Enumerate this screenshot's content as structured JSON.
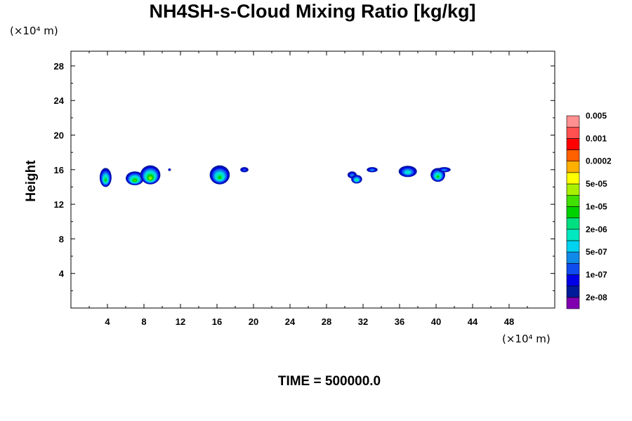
{
  "chart_data": {
    "type": "heatmap",
    "title": "NH4SH-s-Cloud Mixing Ratio [kg/kg]",
    "ylabel": "Height",
    "xlabel": "",
    "x_units": "(×10⁴ m)",
    "y_units": "(×10⁴ m)",
    "xlim": [
      0,
      53
    ],
    "ylim": [
      0,
      29.7
    ],
    "x_ticks": [
      4,
      8,
      12,
      16,
      20,
      24,
      28,
      32,
      36,
      40,
      44,
      48
    ],
    "y_ticks": [
      4,
      8,
      12,
      16,
      20,
      24,
      28
    ],
    "time_label": "TIME = 500000.0",
    "colorbar": {
      "colors": [
        "#8000b0",
        "#001a9a",
        "#0000e6",
        "#0f4cf0",
        "#0f8ae8",
        "#00d2f0",
        "#00e8c0",
        "#00e080",
        "#00d200",
        "#40e000",
        "#a8f000",
        "#ffff00",
        "#ffb000",
        "#ff6000",
        "#ff0000",
        "#ff5050",
        "#ff9090"
      ],
      "labels": [
        "2e-08",
        "1e-07",
        "5e-07",
        "2e-06",
        "1e-05",
        "5e-05",
        "0.0002",
        "0.001",
        "0.005"
      ]
    },
    "cloud_blobs": [
      {
        "x": 3.8,
        "y": 15.1,
        "w": 1.3,
        "h": 2.2,
        "peak": 7
      },
      {
        "x": 7.0,
        "y": 15.0,
        "w": 2.0,
        "h": 1.6,
        "peak": 8
      },
      {
        "x": 8.7,
        "y": 15.4,
        "w": 2.2,
        "h": 2.2,
        "peak": 9
      },
      {
        "x": 10.8,
        "y": 16.0,
        "w": 0.3,
        "h": 0.3,
        "peak": 1
      },
      {
        "x": 16.3,
        "y": 15.4,
        "w": 2.2,
        "h": 2.2,
        "peak": 7
      },
      {
        "x": 19.0,
        "y": 16.0,
        "w": 0.9,
        "h": 0.6,
        "peak": 2
      },
      {
        "x": 30.8,
        "y": 15.4,
        "w": 1.0,
        "h": 0.8,
        "peak": 3
      },
      {
        "x": 31.3,
        "y": 14.9,
        "w": 1.2,
        "h": 1.0,
        "peak": 6
      },
      {
        "x": 33.0,
        "y": 16.0,
        "w": 1.2,
        "h": 0.6,
        "peak": 3
      },
      {
        "x": 36.9,
        "y": 15.8,
        "w": 2.0,
        "h": 1.3,
        "peak": 5
      },
      {
        "x": 40.2,
        "y": 15.4,
        "w": 1.6,
        "h": 1.6,
        "peak": 7
      },
      {
        "x": 40.9,
        "y": 16.0,
        "w": 1.4,
        "h": 0.6,
        "peak": 3
      }
    ]
  }
}
